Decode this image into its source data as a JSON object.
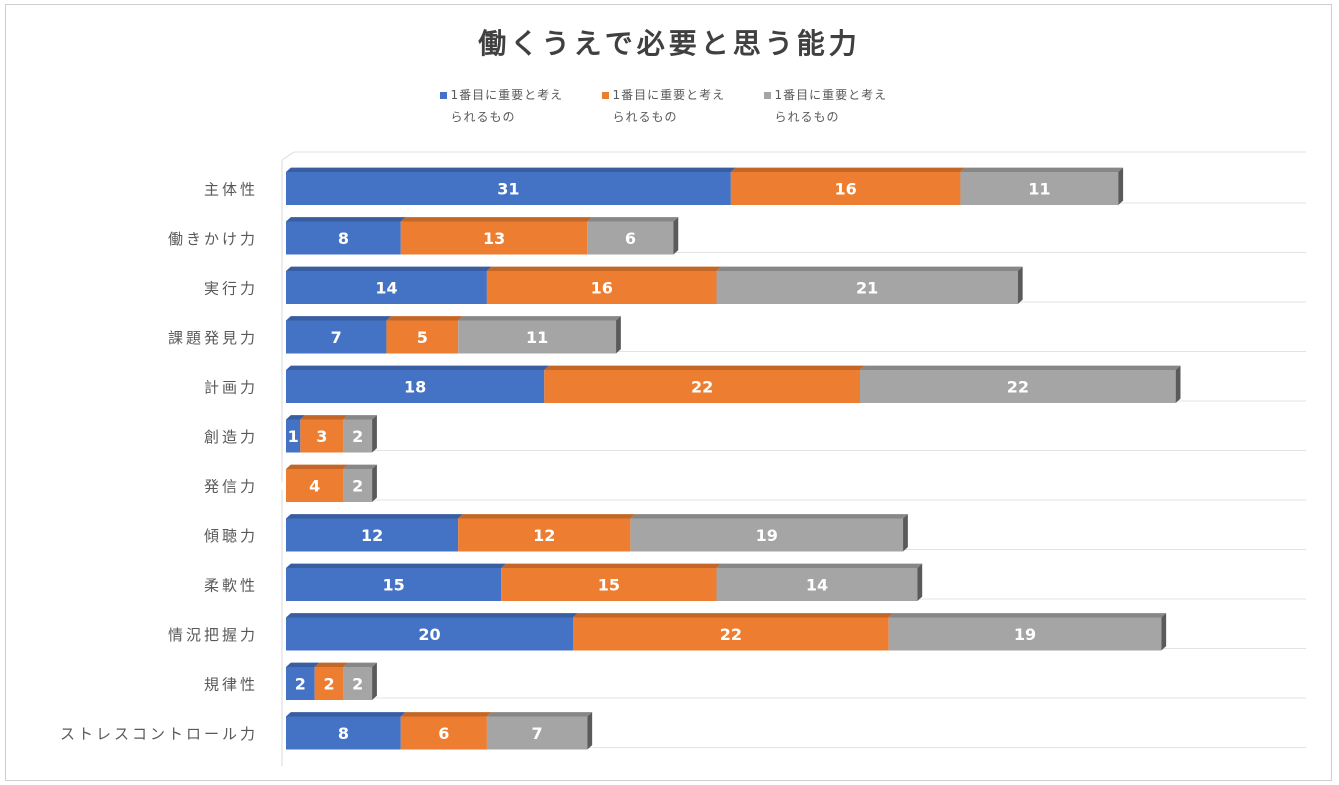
{
  "chart_data": {
    "type": "bar",
    "orientation": "horizontal",
    "stacked": true,
    "title": "働くうえで必要と思う能力",
    "legend_position": "top",
    "categories": [
      "主体性",
      "働きかけ力",
      "実行力",
      "課題発見力",
      "計画力",
      "創造力",
      "発信力",
      "傾聴力",
      "柔軟性",
      "情況把握力",
      "規律性",
      "ストレスコントロール力"
    ],
    "series": [
      {
        "name": "1番目に重要と考えられるもの",
        "color": "#4472c4",
        "values": [
          31,
          8,
          14,
          7,
          18,
          1,
          0,
          12,
          15,
          20,
          2,
          8
        ]
      },
      {
        "name": "1番目に重要と考えられるもの",
        "color": "#ed7d31",
        "values": [
          16,
          13,
          16,
          5,
          22,
          3,
          4,
          12,
          15,
          22,
          2,
          6
        ]
      },
      {
        "name": "1番目に重要と考えられるもの",
        "color": "#a5a5a5",
        "values": [
          11,
          6,
          21,
          11,
          22,
          2,
          2,
          19,
          14,
          19,
          2,
          7
        ]
      }
    ],
    "xlim": [
      0,
      70
    ],
    "grid": true
  }
}
